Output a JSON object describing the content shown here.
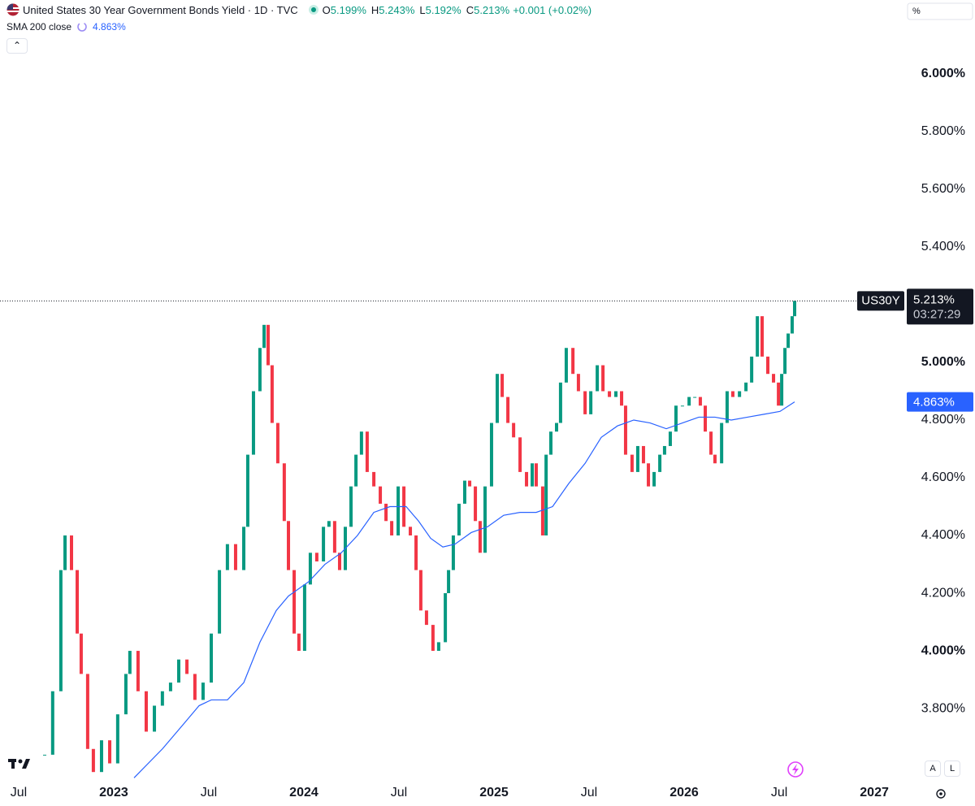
{
  "chart_data": {
    "type": "candlestick",
    "title": "United States 30 Year Government Bonds Yield · 1D · TVC",
    "ohlc": [
      {
        "key": "O",
        "text": "5.199%"
      },
      {
        "key": "H",
        "text": "5.243%"
      },
      {
        "key": "L",
        "text": "5.192%"
      },
      {
        "key": "C",
        "text": "5.213%"
      }
    ],
    "change": "+0.001 (+0.02%)",
    "scale_unit": "%",
    "countdown": "03:27:29",
    "buttons": [
      "A",
      "L"
    ],
    "xlim": [
      2022.402,
      2027.145
    ],
    "ylim": [
      3.558,
      6.256
    ],
    "xticks": [
      {
        "value": 2022.5,
        "label": "Jul"
      },
      {
        "value": 2023,
        "label": "2023"
      },
      {
        "value": 2023.5,
        "label": "Jul"
      },
      {
        "value": 2024,
        "label": "2024"
      },
      {
        "value": 2024.5,
        "label": "Jul"
      },
      {
        "value": 2025,
        "label": "2025"
      },
      {
        "value": 2025.5,
        "label": "Jul"
      },
      {
        "value": 2026,
        "label": "2026"
      },
      {
        "value": 2026.5,
        "label": "Jul"
      },
      {
        "value": 2027,
        "label": "2027"
      }
    ],
    "yticks": [
      {
        "value": 3.8,
        "label": "3.800%"
      },
      {
        "value": 4,
        "label": "4.000%"
      },
      {
        "value": 4.2,
        "label": "4.200%"
      },
      {
        "value": 4.4,
        "label": "4.400%"
      },
      {
        "value": 4.6,
        "label": "4.600%"
      },
      {
        "value": 4.8,
        "label": "4.800%"
      },
      {
        "value": 5,
        "label": "5.000%"
      },
      {
        "value": 5.2,
        "label": "5.200%"
      },
      {
        "value": 5.4,
        "label": "5.400%"
      },
      {
        "value": 5.6,
        "label": "5.600%"
      },
      {
        "value": 5.8,
        "label": "5.800%"
      },
      {
        "value": 6,
        "label": "6.000%"
      }
    ],
    "series": [
      {
        "name": "US30Y",
        "up_color": "#089981",
        "down_color": "#f23645",
        "last_label": "5.213%",
        "x": [
          2022.637,
          2022.679,
          2022.722,
          2022.744,
          2022.778,
          2022.808,
          2022.829,
          2022.863,
          2022.893,
          2022.936,
          2022.979,
          2023.021,
          2023.064,
          2023.085,
          2023.128,
          2023.171,
          2023.214,
          2023.256,
          2023.299,
          2023.342,
          2023.385,
          2023.427,
          2023.47,
          2023.513,
          2023.556,
          2023.598,
          2023.641,
          2023.684,
          2023.705,
          2023.735,
          2023.769,
          2023.791,
          2023.812,
          2023.833,
          2023.863,
          2023.897,
          2023.919,
          2023.949,
          2023.974,
          2024.004,
          2024.034,
          2024.068,
          2024.103,
          2024.132,
          2024.162,
          2024.188,
          2024.218,
          2024.248,
          2024.274,
          2024.303,
          2024.333,
          2024.368,
          2024.402,
          2024.432,
          2024.462,
          2024.496,
          2024.526,
          2024.56,
          2024.59,
          2024.615,
          2024.645,
          2024.679,
          2024.709,
          2024.744,
          2024.761,
          2024.786,
          2024.816,
          2024.846,
          2024.872,
          2024.902,
          2024.927,
          2024.953,
          2024.987,
          2025.017,
          2025.043,
          2025.073,
          2025.103,
          2025.137,
          2025.171,
          2025.201,
          2025.222,
          2025.256,
          2025.274,
          2025.299,
          2025.329,
          2025.35,
          2025.38,
          2025.415,
          2025.444,
          2025.479,
          2025.509,
          2025.543,
          2025.573,
          2025.607,
          2025.641,
          2025.671,
          2025.692,
          2025.726,
          2025.756,
          2025.786,
          2025.812,
          2025.842,
          2025.872,
          2025.897,
          2025.927,
          2025.957,
          2025.991,
          2026.026,
          2026.056,
          2026.085,
          2026.111,
          2026.141,
          2026.162,
          2026.197,
          2026.226,
          2026.256,
          2026.291,
          2026.325,
          2026.355,
          2026.385,
          2026.41,
          2026.44,
          2026.47,
          2026.496,
          2026.513,
          2026.53,
          2026.547,
          2026.568,
          2026.581
        ],
        "values": [
          3.64,
          3.86,
          4.28,
          4.4,
          4.28,
          4.06,
          3.92,
          3.66,
          3.58,
          3.69,
          3.61,
          3.78,
          3.92,
          4.0,
          3.86,
          3.72,
          3.81,
          3.86,
          3.89,
          3.97,
          3.92,
          3.83,
          3.89,
          4.06,
          4.28,
          4.37,
          4.28,
          4.43,
          4.68,
          4.9,
          5.05,
          5.13,
          4.99,
          4.79,
          4.65,
          4.45,
          4.28,
          4.06,
          4.0,
          4.23,
          4.34,
          4.31,
          4.43,
          4.45,
          4.34,
          4.28,
          4.43,
          4.57,
          4.68,
          4.76,
          4.62,
          4.57,
          4.51,
          4.45,
          4.4,
          4.57,
          4.43,
          4.4,
          4.28,
          4.14,
          4.09,
          4.0,
          4.03,
          4.2,
          4.28,
          4.4,
          4.51,
          4.59,
          4.57,
          4.45,
          4.34,
          4.57,
          4.79,
          4.96,
          4.88,
          4.79,
          4.74,
          4.62,
          4.57,
          4.65,
          4.57,
          4.4,
          4.68,
          4.76,
          4.79,
          4.93,
          5.05,
          4.96,
          4.9,
          4.82,
          4.9,
          4.99,
          4.9,
          4.88,
          4.9,
          4.85,
          4.68,
          4.62,
          4.71,
          4.65,
          4.57,
          4.62,
          4.68,
          4.71,
          4.76,
          4.85,
          4.85,
          4.88,
          4.88,
          4.85,
          4.76,
          4.68,
          4.65,
          4.79,
          4.9,
          4.88,
          4.9,
          4.93,
          5.02,
          5.16,
          5.02,
          4.96,
          4.93,
          4.85,
          4.96,
          5.05,
          5.1,
          5.16,
          5.213
        ]
      },
      {
        "name": "SMA 200 close",
        "color": "#2962ff",
        "last_label": "4.863%",
        "x": [
          2023.107,
          2023.256,
          2023.385,
          2023.449,
          2023.513,
          2023.598,
          2023.684,
          2023.769,
          2023.855,
          2023.919,
          2024.026,
          2024.111,
          2024.197,
          2024.282,
          2024.368,
          2024.453,
          2024.538,
          2024.603,
          2024.667,
          2024.731,
          2024.795,
          2024.88,
          2024.966,
          2025.051,
          2025.137,
          2025.222,
          2025.308,
          2025.393,
          2025.479,
          2025.564,
          2025.65,
          2025.735,
          2025.821,
          2025.906,
          2025.991,
          2026.077,
          2026.162,
          2026.248,
          2026.333,
          2026.419,
          2026.504,
          2026.581
        ],
        "values": [
          3.56,
          3.66,
          3.76,
          3.81,
          3.83,
          3.83,
          3.89,
          4.03,
          4.14,
          4.19,
          4.24,
          4.3,
          4.34,
          4.4,
          4.48,
          4.5,
          4.5,
          4.45,
          4.39,
          4.36,
          4.37,
          4.41,
          4.43,
          4.47,
          4.48,
          4.48,
          4.5,
          4.58,
          4.65,
          4.74,
          4.78,
          4.8,
          4.79,
          4.77,
          4.79,
          4.81,
          4.81,
          4.8,
          4.81,
          4.82,
          4.83,
          4.863
        ]
      }
    ]
  }
}
